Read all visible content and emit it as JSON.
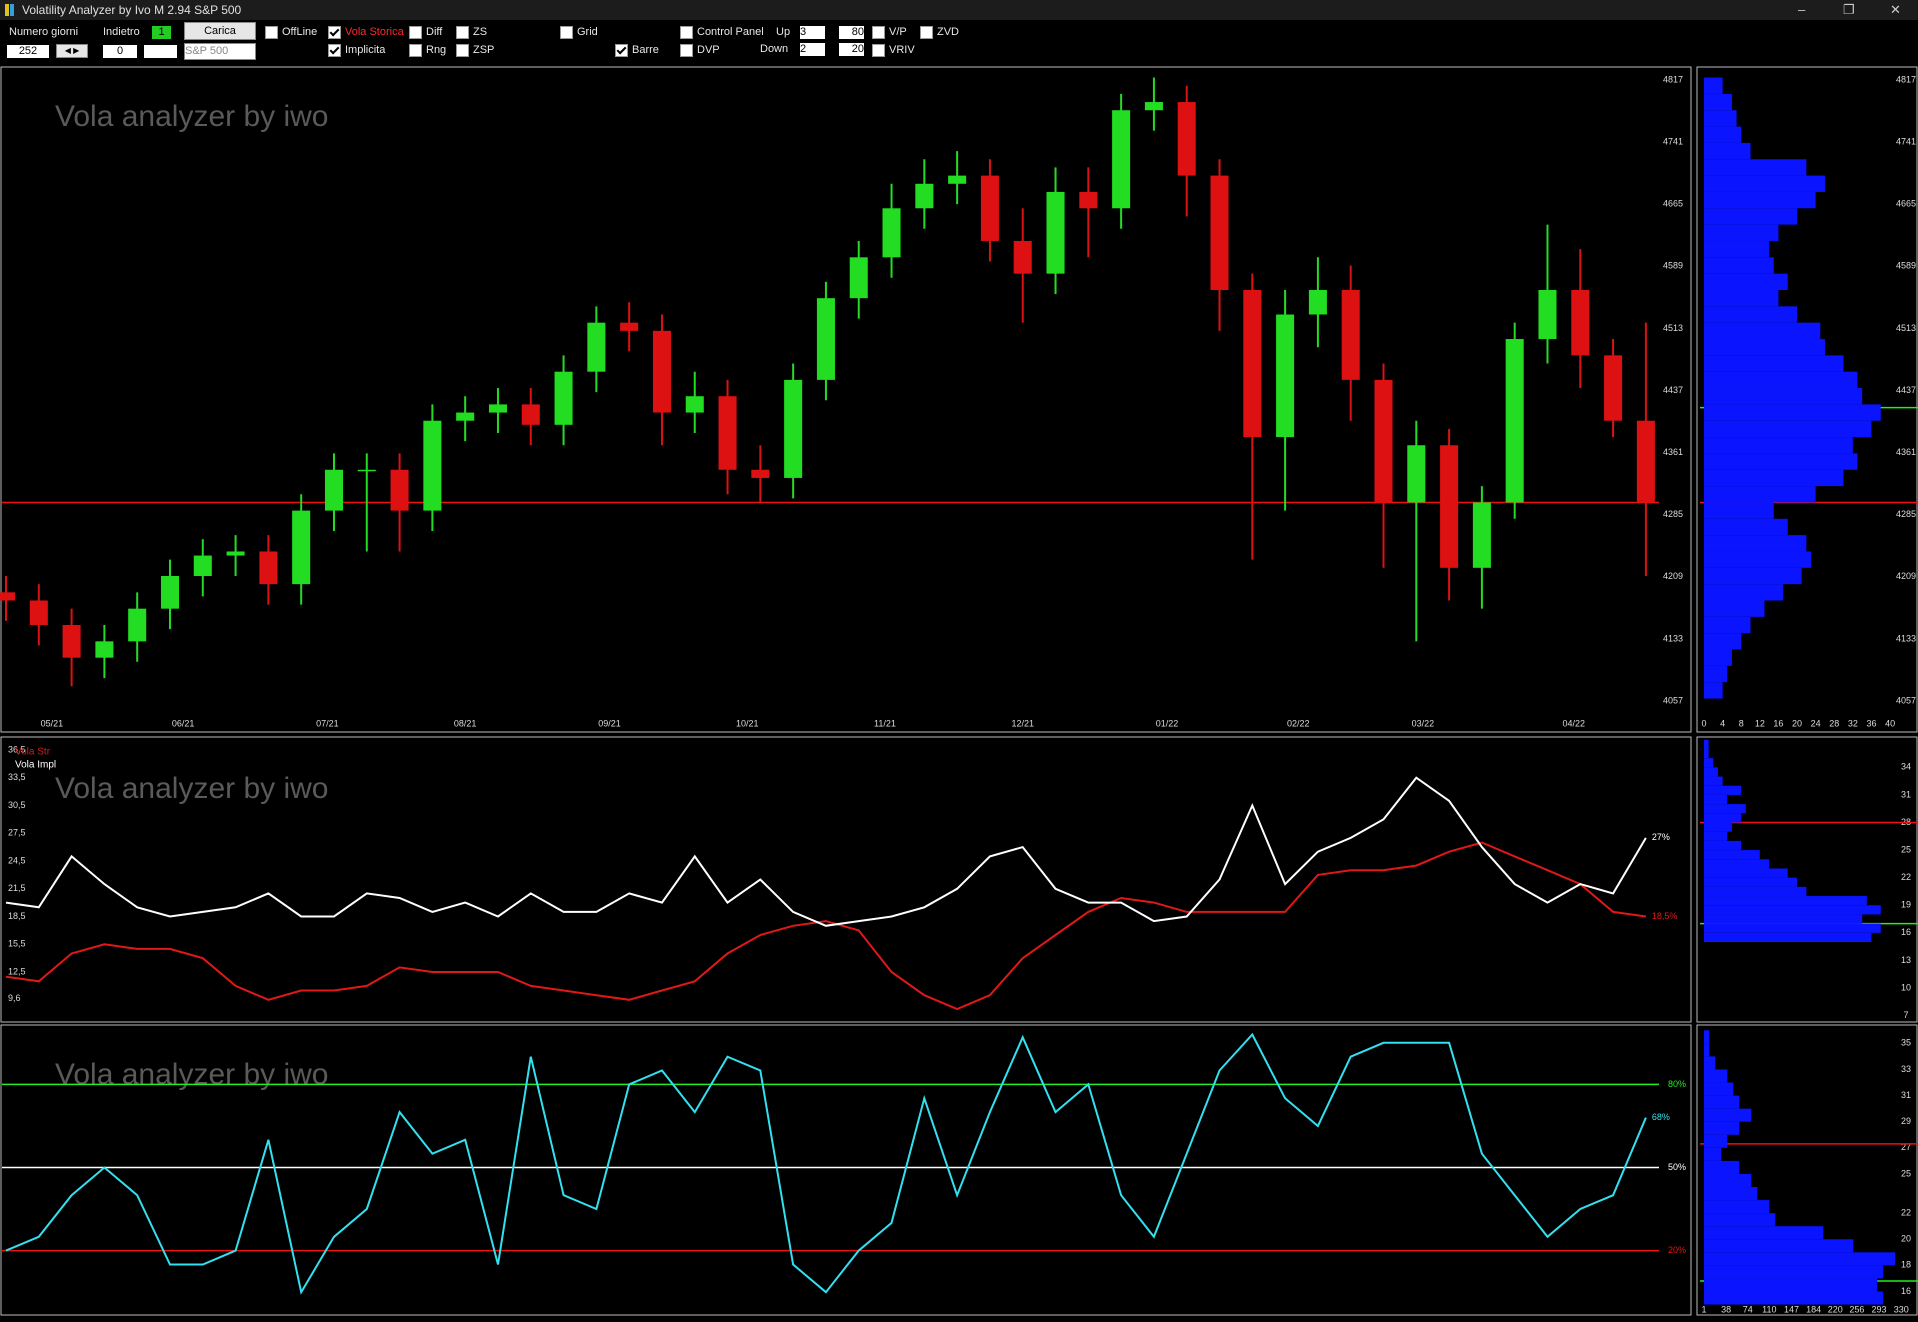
{
  "window": {
    "title": "Volatility Analyzer by Ivo M 2.94  S&P 500"
  },
  "toolbar": {
    "numero_giorni_label": "Numero giorni",
    "numero_giorni": "252",
    "indietro_label": "Indietro",
    "indietro_badge": "1",
    "indietro": "0",
    "carica": "Carica",
    "symbol": "S&P 500",
    "checkboxes": [
      {
        "label": "OffLine",
        "checked": false
      },
      {
        "label": "Vola Storica",
        "checked": true,
        "color": "#ff2a2a"
      },
      {
        "label": "Implicita",
        "checked": true
      },
      {
        "label": "Diff",
        "checked": false
      },
      {
        "label": "Rng",
        "checked": false
      },
      {
        "label": "ZS",
        "checked": false
      },
      {
        "label": "ZSP",
        "checked": false
      },
      {
        "label": "Grid",
        "checked": false
      },
      {
        "label": "Barre",
        "checked": true
      },
      {
        "label": "Control Panel",
        "checked": false
      },
      {
        "label": "DVP",
        "checked": false
      },
      {
        "label": "V/P",
        "checked": false
      },
      {
        "label": "VRIV",
        "checked": false
      },
      {
        "label": "ZVD",
        "checked": false
      }
    ],
    "up_label": "Up",
    "up": [
      "3",
      "80"
    ],
    "down_label": "Down",
    "down": [
      "2",
      "20"
    ]
  },
  "chart_data": [
    {
      "type": "candlestick",
      "watermark": "Vola analyzer by iwo",
      "up_color": "#22dd22",
      "down_color": "#dd1111",
      "x": [
        0,
        5,
        10,
        15,
        20,
        25,
        30,
        35,
        40,
        45,
        50,
        55,
        60,
        65,
        70,
        75,
        80,
        85,
        90,
        95,
        100,
        105,
        110,
        115,
        120,
        125,
        130,
        135,
        140,
        145,
        150,
        155,
        160,
        165,
        170,
        175,
        180,
        185,
        190,
        195,
        200,
        205,
        210,
        215,
        220,
        225,
        230,
        235,
        240,
        245,
        250
      ],
      "open": [
        4190,
        4180,
        4150,
        4110,
        4130,
        4170,
        4210,
        4235,
        4240,
        4200,
        4290,
        4340,
        4340,
        4290,
        4400,
        4410,
        4420,
        4395,
        4460,
        4520,
        4510,
        4410,
        4430,
        4340,
        4330,
        4450,
        4550,
        4600,
        4660,
        4690,
        4700,
        4620,
        4580,
        4680,
        4660,
        4780,
        4790,
        4700,
        4560,
        4380,
        4530,
        4560,
        4450,
        4300,
        4370,
        4220,
        4300,
        4500,
        4560,
        4480,
        4400
      ],
      "high": [
        4210,
        4200,
        4170,
        4150,
        4190,
        4230,
        4255,
        4260,
        4260,
        4310,
        4360,
        4360,
        4360,
        4420,
        4430,
        4440,
        4440,
        4480,
        4540,
        4545,
        4530,
        4460,
        4450,
        4370,
        4470,
        4570,
        4620,
        4690,
        4720,
        4730,
        4720,
        4660,
        4710,
        4710,
        4800,
        4820,
        4810,
        4720,
        4580,
        4560,
        4600,
        4590,
        4470,
        4400,
        4390,
        4320,
        4520,
        4640,
        4610,
        4500,
        4520
      ],
      "low": [
        4155,
        4125,
        4075,
        4085,
        4105,
        4145,
        4185,
        4210,
        4175,
        4175,
        4265,
        4240,
        4240,
        4265,
        4375,
        4385,
        4370,
        4370,
        4435,
        4485,
        4370,
        4385,
        4310,
        4300,
        4305,
        4425,
        4525,
        4575,
        4635,
        4665,
        4595,
        4520,
        4555,
        4600,
        4635,
        4755,
        4650,
        4510,
        4230,
        4290,
        4490,
        4400,
        4220,
        4130,
        4180,
        4170,
        4280,
        4470,
        4440,
        4380,
        4210
      ],
      "close": [
        4180,
        4150,
        4110,
        4130,
        4170,
        4210,
        4235,
        4240,
        4200,
        4290,
        4340,
        4340,
        4290,
        4400,
        4410,
        4420,
        4395,
        4460,
        4520,
        4510,
        4410,
        4430,
        4340,
        4330,
        4450,
        4550,
        4600,
        4660,
        4690,
        4700,
        4620,
        4580,
        4680,
        4660,
        4780,
        4790,
        4700,
        4560,
        4380,
        4530,
        4560,
        4450,
        4300,
        4370,
        4220,
        4300,
        4500,
        4560,
        4480,
        4400,
        4300
      ],
      "xlim": [
        0,
        252
      ],
      "xticks": [
        {
          "value": 7,
          "label": "05/21"
        },
        {
          "value": 27,
          "label": "06/21"
        },
        {
          "value": 49,
          "label": "07/21"
        },
        {
          "value": 70,
          "label": "08/21"
        },
        {
          "value": 92,
          "label": "09/21"
        },
        {
          "value": 113,
          "label": "10/21"
        },
        {
          "value": 134,
          "label": "11/21"
        },
        {
          "value": 155,
          "label": "12/21"
        },
        {
          "value": 177,
          "label": "01/22"
        },
        {
          "value": 197,
          "label": "02/22"
        },
        {
          "value": 216,
          "label": "03/22"
        },
        {
          "value": 239,
          "label": "04/22"
        }
      ],
      "ylim": [
        4057,
        4817
      ],
      "yticks": [
        4057,
        4133,
        4209,
        4285,
        4361,
        4437,
        4513,
        4589,
        4665,
        4741,
        4817
      ],
      "hlines": [
        {
          "value": 4300,
          "color": "#ee1111"
        }
      ]
    },
    {
      "type": "barh-hist",
      "color": "#0a14ff",
      "bins": [
        4060,
        4080,
        4100,
        4120,
        4140,
        4160,
        4180,
        4200,
        4220,
        4240,
        4260,
        4280,
        4300,
        4320,
        4340,
        4360,
        4380,
        4400,
        4420,
        4440,
        4460,
        4480,
        4500,
        4520,
        4540,
        4560,
        4580,
        4600,
        4620,
        4640,
        4660,
        4680,
        4700,
        4720,
        4740,
        4760,
        4780,
        4800,
        4820
      ],
      "counts": [
        4,
        5,
        6,
        8,
        10,
        13,
        17,
        21,
        23,
        22,
        18,
        15,
        24,
        30,
        33,
        32,
        36,
        38,
        34,
        33,
        30,
        26,
        25,
        20,
        16,
        18,
        15,
        14,
        16,
        20,
        24,
        26,
        22,
        10,
        8,
        7,
        6,
        4
      ],
      "xlim": [
        0,
        46
      ],
      "xticks": [
        0,
        4,
        8,
        12,
        16,
        20,
        24,
        28,
        32,
        36,
        40
      ],
      "ylim": [
        4057,
        4817
      ],
      "yticks": [
        4057,
        4133,
        4209,
        4285,
        4361,
        4437,
        4513,
        4589,
        4665,
        4741,
        4817
      ],
      "hlines": [
        {
          "value": 4416,
          "color": "#22ee22"
        },
        {
          "value": 4300,
          "color": "#ee1111"
        }
      ]
    },
    {
      "type": "line",
      "watermark": "Vola analyzer by iwo",
      "x": [
        0,
        5,
        10,
        15,
        20,
        25,
        30,
        35,
        40,
        45,
        50,
        55,
        60,
        65,
        70,
        75,
        80,
        85,
        90,
        95,
        100,
        105,
        110,
        115,
        120,
        125,
        130,
        135,
        140,
        145,
        150,
        155,
        160,
        165,
        170,
        175,
        180,
        185,
        190,
        195,
        200,
        205,
        210,
        215,
        220,
        225,
        230,
        235,
        240,
        245,
        250
      ],
      "series": [
        {
          "name": "Vola Str",
          "color": "#e01818",
          "values": [
            12,
            11.5,
            14.5,
            15.5,
            15,
            15,
            14,
            11,
            9.5,
            10.5,
            10.5,
            11,
            13,
            12.5,
            12.5,
            12.5,
            11,
            10.5,
            10,
            9.5,
            10.5,
            11.5,
            14.5,
            16.5,
            17.5,
            18,
            17,
            12.5,
            10,
            8.5,
            10,
            14,
            16.5,
            19,
            20.5,
            20,
            19,
            19,
            19,
            19,
            23,
            23.5,
            23.5,
            24,
            25.5,
            26.5,
            25,
            23.5,
            22,
            19,
            18.5
          ],
          "value_labels": [
            null,
            null,
            null,
            null,
            null,
            null,
            null,
            null,
            null,
            null,
            null,
            null,
            null,
            null,
            null,
            null,
            null,
            null,
            null,
            null,
            null,
            null,
            null,
            null,
            null,
            null,
            null,
            null,
            null,
            null,
            null,
            null,
            null,
            null,
            null,
            null,
            null,
            null,
            null,
            null,
            null,
            null,
            null,
            null,
            null,
            null,
            null,
            null,
            null,
            null,
            "18,5%"
          ]
        },
        {
          "name": "Vola Impl",
          "color": "#ffffff",
          "values": [
            20,
            19.5,
            25,
            22,
            19.5,
            18.5,
            19,
            19.5,
            21,
            18.5,
            18.5,
            21,
            20.5,
            19,
            20,
            18.5,
            21,
            19,
            19,
            21,
            20,
            25,
            20,
            22.5,
            19,
            17.5,
            18,
            18.5,
            19.5,
            21.5,
            25,
            26,
            21.5,
            20,
            20,
            18,
            18.5,
            22.5,
            30.5,
            22,
            25.5,
            27,
            29,
            33.5,
            31,
            26,
            22,
            20,
            22,
            21,
            27
          ],
          "value_labels": [
            null,
            null,
            null,
            null,
            null,
            null,
            null,
            null,
            null,
            null,
            null,
            null,
            null,
            null,
            null,
            null,
            null,
            null,
            null,
            null,
            null,
            null,
            null,
            null,
            null,
            null,
            null,
            null,
            null,
            null,
            null,
            null,
            null,
            null,
            null,
            null,
            null,
            null,
            null,
            null,
            null,
            null,
            null,
            null,
            null,
            null,
            null,
            null,
            null,
            null,
            "27%"
          ]
        }
      ],
      "xlim": [
        0,
        252
      ],
      "ylim": [
        7.1,
        37.9
      ],
      "yticks": [
        {
          "value": 36.5,
          "label": "36,5"
        },
        {
          "value": 33.5,
          "label": "33,5"
        },
        {
          "value": 30.5,
          "label": "30,5"
        },
        {
          "value": 27.5,
          "label": "27,5"
        },
        {
          "value": 24.5,
          "label": "24,5"
        },
        {
          "value": 21.5,
          "label": "21,5"
        },
        {
          "value": 18.5,
          "label": "18,5"
        },
        {
          "value": 15.5,
          "label": "15,5"
        },
        {
          "value": 12.5,
          "label": "12,5"
        },
        {
          "value": 9.6,
          "label": "9,6"
        }
      ]
    },
    {
      "type": "barh-hist",
      "color": "#0a14ff",
      "bins": [
        15,
        16,
        17,
        18,
        19,
        20,
        21,
        22,
        23,
        24,
        25,
        26,
        27,
        28,
        29,
        30,
        31,
        32,
        33,
        34,
        35,
        36,
        37
      ],
      "counts": [
        36,
        38,
        34,
        38,
        35,
        22,
        20,
        18,
        14,
        12,
        8,
        5,
        6,
        8,
        9,
        5,
        8,
        4,
        3,
        2,
        1,
        1
      ],
      "xlim": [
        0,
        46
      ],
      "ylim": [
        6.3,
        37.3
      ],
      "yticks": [
        34,
        31,
        28,
        25,
        22,
        19,
        16,
        13,
        10,
        7
      ],
      "hlines": [
        {
          "value": 28,
          "color": "#ee1111"
        },
        {
          "value": 17,
          "color": "#22ee22"
        }
      ]
    },
    {
      "type": "line",
      "watermark": "Vola analyzer by iwo",
      "x": [
        0,
        5,
        10,
        15,
        20,
        25,
        30,
        35,
        40,
        45,
        50,
        55,
        60,
        65,
        70,
        75,
        80,
        85,
        90,
        95,
        100,
        105,
        110,
        115,
        120,
        125,
        130,
        135,
        140,
        145,
        150,
        155,
        160,
        165,
        170,
        175,
        180,
        185,
        190,
        195,
        200,
        205,
        210,
        215,
        220,
        225,
        230,
        235,
        240,
        245,
        250
      ],
      "series": [
        {
          "color": "#33e0f0",
          "values": [
            20,
            25,
            40,
            50,
            40,
            15,
            15,
            20,
            60,
            5,
            25,
            35,
            70,
            55,
            60,
            15,
            90,
            40,
            35,
            80,
            85,
            70,
            90,
            85,
            15,
            5,
            20,
            30,
            75,
            40,
            70,
            97,
            70,
            80,
            40,
            25,
            55,
            85,
            98,
            75,
            65,
            90,
            95,
            95,
            95,
            55,
            40,
            25,
            35,
            40,
            68
          ],
          "value_labels": [
            null,
            null,
            null,
            null,
            null,
            null,
            null,
            null,
            null,
            null,
            null,
            null,
            null,
            null,
            null,
            null,
            null,
            null,
            null,
            null,
            null,
            null,
            null,
            null,
            null,
            null,
            null,
            null,
            null,
            null,
            null,
            null,
            null,
            null,
            null,
            null,
            null,
            null,
            null,
            null,
            null,
            null,
            null,
            null,
            null,
            null,
            null,
            null,
            null,
            null,
            "68%"
          ]
        }
      ],
      "xlim": [
        0,
        252
      ],
      "ylim": [
        0,
        100
      ],
      "hlines": [
        {
          "value": 80,
          "color": "#22ee22",
          "label": "80%"
        },
        {
          "value": 50,
          "color": "#ffffff",
          "label": "50%"
        },
        {
          "value": 20,
          "color": "#ee1111",
          "label": "20%"
        }
      ]
    },
    {
      "type": "barh-hist",
      "color": "#0a14ff",
      "bins": [
        15,
        16,
        17,
        18,
        19,
        20,
        21,
        22,
        23,
        24,
        25,
        26,
        27,
        28,
        29,
        30,
        31,
        32,
        33,
        34,
        35,
        36
      ],
      "counts": [
        300,
        290,
        300,
        320,
        250,
        200,
        120,
        110,
        90,
        80,
        60,
        30,
        40,
        60,
        80,
        60,
        50,
        40,
        20,
        10,
        10
      ],
      "xlim": [
        1,
        358
      ],
      "xticks": [
        1,
        38,
        74,
        110,
        147,
        184,
        220,
        256,
        293,
        330
      ],
      "ylim": [
        14.2,
        36.1
      ],
      "yticks": [
        35,
        33,
        31,
        29,
        27,
        25,
        22,
        20,
        18,
        16
      ],
      "hlines": [
        {
          "value": 27.3,
          "color": "#ee1111"
        },
        {
          "value": 16.8,
          "color": "#22ee22"
        }
      ]
    }
  ]
}
